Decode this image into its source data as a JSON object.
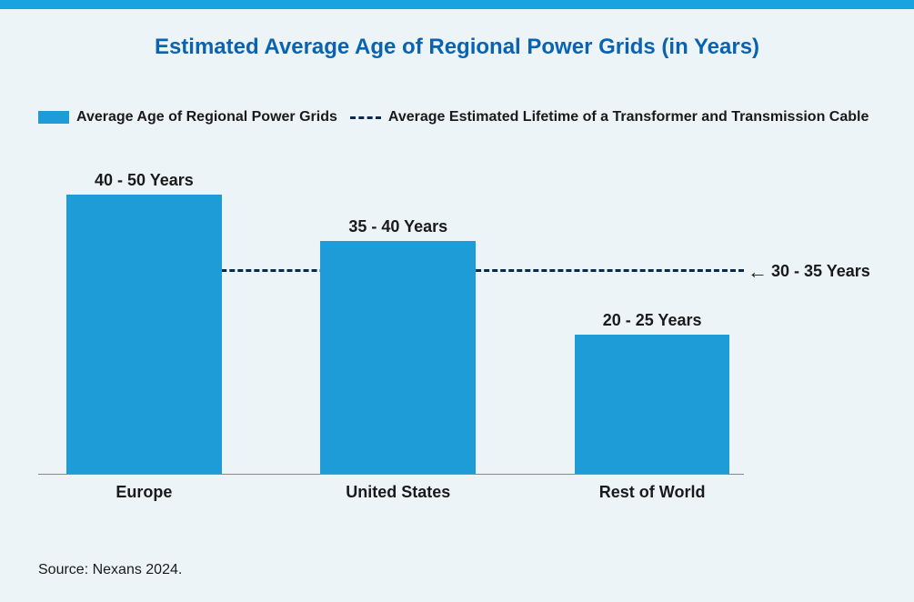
{
  "title": "Estimated Average Age of Regional Power Grids (in Years)",
  "colors": {
    "title": "#0a63b0",
    "top_bar": "#18a4e0",
    "bar_fill": "#1d9cd8",
    "text": "#1a1a1a",
    "ref_line": "#0b2a4a",
    "background": "#edf4f8",
    "axis": "#888888"
  },
  "legend": {
    "series_label": "Average Age of Regional Power Grids",
    "ref_label": "Average Estimated Lifetime of a Transformer and Transmission Cable"
  },
  "chart": {
    "type": "bar",
    "y_max": 50,
    "bar_width_pct": 22,
    "bars": [
      {
        "category": "Europe",
        "value": 45,
        "label": "40 - 50 Years",
        "center_pct": 15
      },
      {
        "category": "United States",
        "value": 37.5,
        "label": "35 - 40 Years",
        "center_pct": 51
      },
      {
        "category": "Rest of World",
        "value": 22.5,
        "label": "20 - 25 Years",
        "center_pct": 87
      }
    ],
    "reference": {
      "value": 32.5,
      "label": "30 - 35 Years"
    }
  },
  "source": "Source: Nexans 2024."
}
